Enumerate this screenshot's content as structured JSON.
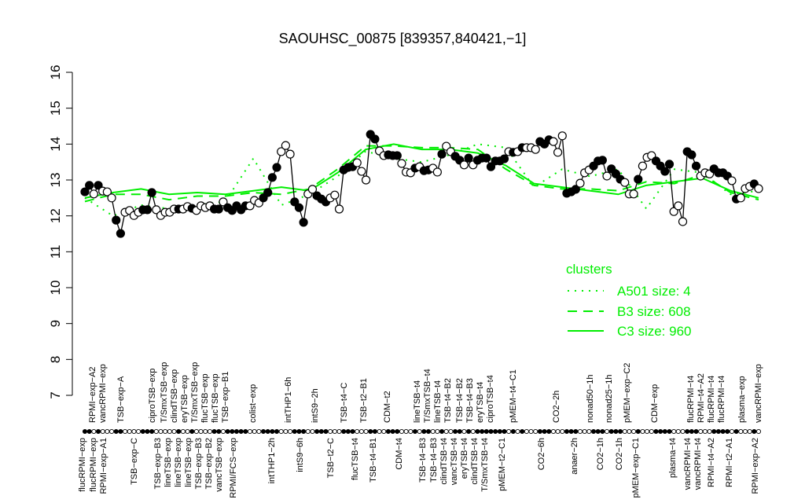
{
  "chart_data": {
    "type": "line",
    "title": "SAOUHSC_00875 [839357,840421,−1]",
    "xlabel": "",
    "ylabel": "",
    "ylim": [
      7,
      16
    ],
    "yticks": [
      7,
      8,
      9,
      10,
      11,
      12,
      13,
      14,
      15,
      16
    ],
    "grid": false,
    "legend": {
      "title": "clusters",
      "placement": "right",
      "color": "#00ee00",
      "entries": [
        {
          "label": "A501 size: 4",
          "style": "dotted"
        },
        {
          "label": "B3 size: 608",
          "style": "dashed"
        },
        {
          "label": "C3 size: 960",
          "style": "solid"
        }
      ]
    },
    "point_color": "#000000",
    "points": [
      [
        12.67,
        1
      ],
      [
        12.85,
        1
      ],
      [
        12.61,
        0
      ],
      [
        12.85,
        1
      ],
      [
        12.69,
        0
      ],
      [
        12.67,
        0
      ],
      [
        12.5,
        0
      ],
      [
        11.88,
        1
      ],
      [
        11.51,
        1
      ],
      [
        12.1,
        0
      ],
      [
        12.15,
        0
      ],
      [
        12.01,
        0
      ],
      [
        12.1,
        0
      ],
      [
        12.17,
        1
      ],
      [
        12.17,
        1
      ],
      [
        12.65,
        1
      ],
      [
        12.17,
        0
      ],
      [
        12.01,
        0
      ],
      [
        12.1,
        0
      ],
      [
        12.1,
        0
      ],
      [
        12.19,
        0
      ],
      [
        12.19,
        1
      ],
      [
        12.19,
        0
      ],
      [
        12.26,
        0
      ],
      [
        12.21,
        1
      ],
      [
        12.15,
        0
      ],
      [
        12.28,
        0
      ],
      [
        12.23,
        0
      ],
      [
        12.28,
        0
      ],
      [
        12.19,
        1
      ],
      [
        12.19,
        1
      ],
      [
        12.39,
        0
      ],
      [
        12.23,
        1
      ],
      [
        12.15,
        1
      ],
      [
        12.28,
        1
      ],
      [
        12.17,
        1
      ],
      [
        12.28,
        1
      ],
      [
        12.28,
        0
      ],
      [
        12.43,
        0
      ],
      [
        12.36,
        0
      ],
      [
        12.5,
        1
      ],
      [
        12.65,
        1
      ],
      [
        13.07,
        1
      ],
      [
        13.35,
        1
      ],
      [
        13.79,
        0
      ],
      [
        13.96,
        0
      ],
      [
        13.72,
        0
      ],
      [
        12.39,
        1
      ],
      [
        12.23,
        1
      ],
      [
        11.82,
        1
      ],
      [
        12.61,
        0
      ],
      [
        12.74,
        0
      ],
      [
        12.56,
        1
      ],
      [
        12.47,
        1
      ],
      [
        12.39,
        1
      ],
      [
        12.5,
        0
      ],
      [
        12.58,
        0
      ],
      [
        12.19,
        0
      ],
      [
        13.28,
        1
      ],
      [
        13.35,
        1
      ],
      [
        13.37,
        1
      ],
      [
        13.48,
        0
      ],
      [
        13.24,
        0
      ],
      [
        13.0,
        0
      ],
      [
        14.27,
        1
      ],
      [
        14.14,
        1
      ],
      [
        13.81,
        0
      ],
      [
        13.68,
        0
      ],
      [
        13.7,
        1
      ],
      [
        13.68,
        1
      ],
      [
        13.68,
        1
      ],
      [
        13.46,
        0
      ],
      [
        13.22,
        0
      ],
      [
        13.2,
        0
      ],
      [
        13.33,
        1
      ],
      [
        13.37,
        0
      ],
      [
        13.26,
        1
      ],
      [
        13.28,
        1
      ],
      [
        13.33,
        0
      ],
      [
        13.22,
        0
      ],
      [
        13.72,
        1
      ],
      [
        13.94,
        0
      ],
      [
        13.79,
        0
      ],
      [
        13.66,
        1
      ],
      [
        13.55,
        1
      ],
      [
        13.42,
        0
      ],
      [
        13.61,
        1
      ],
      [
        13.42,
        0
      ],
      [
        13.55,
        1
      ],
      [
        13.61,
        1
      ],
      [
        13.61,
        1
      ],
      [
        13.37,
        1
      ],
      [
        13.53,
        1
      ],
      [
        13.53,
        1
      ],
      [
        13.59,
        1
      ],
      [
        13.79,
        0
      ],
      [
        13.77,
        1
      ],
      [
        13.79,
        0
      ],
      [
        13.9,
        1
      ],
      [
        13.9,
        0
      ],
      [
        13.9,
        0
      ],
      [
        13.85,
        0
      ],
      [
        14.07,
        1
      ],
      [
        14.0,
        1
      ],
      [
        14.12,
        1
      ],
      [
        14.07,
        0
      ],
      [
        13.77,
        0
      ],
      [
        14.23,
        0
      ],
      [
        12.63,
        1
      ],
      [
        12.67,
        1
      ],
      [
        12.74,
        1
      ],
      [
        12.91,
        0
      ],
      [
        13.2,
        0
      ],
      [
        13.28,
        0
      ],
      [
        13.39,
        1
      ],
      [
        13.53,
        1
      ],
      [
        13.55,
        1
      ],
      [
        13.11,
        0
      ],
      [
        13.31,
        1
      ],
      [
        13.17,
        1
      ],
      [
        13.02,
        1
      ],
      [
        12.93,
        0
      ],
      [
        12.61,
        0
      ],
      [
        12.61,
        0
      ],
      [
        13.02,
        1
      ],
      [
        13.39,
        0
      ],
      [
        13.63,
        0
      ],
      [
        13.68,
        0
      ],
      [
        13.53,
        1
      ],
      [
        13.39,
        1
      ],
      [
        13.24,
        1
      ],
      [
        13.44,
        1
      ],
      [
        12.12,
        0
      ],
      [
        12.28,
        0
      ],
      [
        11.84,
        0
      ],
      [
        13.79,
        1
      ],
      [
        13.7,
        1
      ],
      [
        13.39,
        1
      ],
      [
        13.11,
        0
      ],
      [
        13.2,
        0
      ],
      [
        13.17,
        0
      ],
      [
        13.31,
        1
      ],
      [
        13.2,
        1
      ],
      [
        13.2,
        1
      ],
      [
        13.11,
        1
      ],
      [
        12.98,
        0
      ],
      [
        12.47,
        1
      ],
      [
        12.5,
        0
      ],
      [
        12.76,
        0
      ],
      [
        12.82,
        0
      ],
      [
        12.89,
        1
      ],
      [
        12.76,
        0
      ]
    ],
    "cluster_lines": {
      "C3": [
        12.5,
        12.65,
        12.75,
        12.6,
        12.65,
        12.6,
        12.7,
        12.8,
        12.7,
        13.2,
        13.85,
        14.0,
        13.85,
        13.85,
        13.75,
        13.4,
        12.9,
        12.8,
        12.7,
        12.6,
        12.85,
        12.95,
        13.05,
        12.7,
        12.5
      ],
      "B3": [
        12.4,
        12.6,
        12.6,
        12.45,
        12.55,
        12.55,
        12.65,
        12.6,
        12.75,
        13.3,
        13.95,
        13.95,
        13.9,
        13.9,
        13.85,
        13.3,
        12.85,
        12.75,
        12.75,
        12.7,
        12.95,
        12.9,
        13.15,
        12.65,
        12.45
      ],
      "A501": [
        12.5,
        12.0,
        12.3,
        12.2,
        12.3,
        12.4,
        13.6,
        12.3,
        12.6,
        13.1,
        13.8,
        13.6,
        13.5,
        13.7,
        14.0,
        13.9,
        12.8,
        13.3,
        13.1,
        13.3,
        12.2,
        13.3,
        13.2,
        12.6,
        12.7
      ]
    },
    "sample_labels_top": [
      "RPMI−exp−A2",
      "vancRPMI−exp",
      "TSB−exp−A",
      "ciproTSB−exp",
      "T/SmxTSB−exp",
      "clindTSB−exp",
      "eryTSB−exp",
      "T/SmxTSB−exp",
      "flucTSB−exp",
      "flucTSB−exp",
      "TSB−exp−B1",
      "colist−exp",
      "intTHP1−6h",
      "intS9−2h",
      "TSB−t4−C",
      "TSB−t2−B1",
      "CDM−t2",
      "lineTSB−t4",
      "T/SmxTSB−t4",
      "lineTSB−t4",
      "TSB−t4−B2",
      "TSB−t4−B2",
      "TSB−t4−B3",
      "eryTSB−t4",
      "ciproTSB−t4",
      "pMEM−t4−C1",
      "CO2−2h",
      "nonad50−1h",
      "nonad25−1h",
      "pMEM−exp−C2",
      "CDM−exp",
      "flucRPMI−t4",
      "RPMI−t4−A2",
      "flucRPMI−t4",
      "flucRPMI−t4",
      "plasma−exp",
      "vancRPMI−exp"
    ],
    "sample_labels_bottom": [
      "flucRPMI−exp",
      "flucRPMI−exp",
      "RPMI−exp−A1",
      "TSB−exp−C",
      "TSB−exp−B3",
      "lineTSB−exp",
      "lineTSB−exp",
      "lineTSB−exp",
      "TSB−exp−B3",
      "TSB−exp−B2",
      "vancTSB−exp",
      "RPMI/FCS−exp",
      "intTHP1−2h",
      "intS9−6h",
      "TSB−t2−C",
      "flucTSB−t4",
      "TSB−t4−B1",
      "CDM−t4",
      "TSB−t4−B3",
      "TSB−t4−B3",
      "clindTSB−t4",
      "vancTSB−t4",
      "eryTSB−t4",
      "clindTSB−t4",
      "T/SmxTSB−t4",
      "pMEM−t2−C1",
      "CO2−6h",
      "anaer−2h",
      "CO2−1h",
      "CO2−1h",
      "pMEM−exp−C1",
      "plasma−t4",
      "vancRPMI−t4",
      "vancRPMI−t4",
      "RPMI−t4−A2",
      "RPMI−t2−A1",
      "RPMI−exp−A2"
    ]
  }
}
